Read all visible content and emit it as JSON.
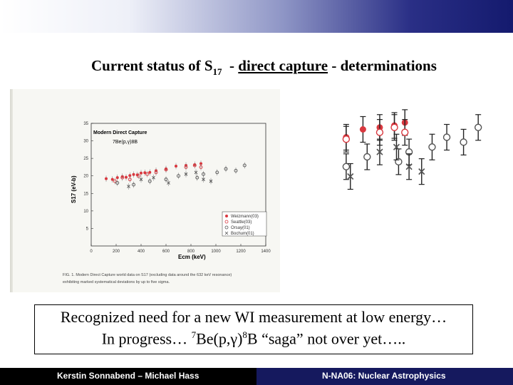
{
  "slide": {
    "title_part1": "Current status of S",
    "title_sub": "17",
    "title_part2": "  - ",
    "title_underlined": "direct capture",
    "title_part3": " - determinations"
  },
  "scanned_figure": {
    "header": "Modern Direct Capture",
    "reaction": "7Be(p,γ)8B",
    "caption_line1": "FIG. 1.  Modern Direct Capture world data on S17 (excluding data around the 632 keV resonance)",
    "caption_line2": "exhibiting marked systematical deviations by up to five sigma."
  },
  "chart_data": {
    "type": "scatter",
    "xlabel": "Ecm (keV)",
    "ylabel": "S17 (eV-b)",
    "xlim": [
      0,
      1400
    ],
    "ylim": [
      0,
      35
    ],
    "x_ticks": [
      "0",
      "200",
      "400",
      "600",
      "800",
      "1000",
      "1200",
      "1400"
    ],
    "y_ticks": [
      "5",
      "10",
      "15",
      "20",
      "25",
      "30",
      "35"
    ],
    "legend_position": "bottom-right",
    "series": [
      {
        "name": "Weizmann(03)",
        "marker": "filled-circle",
        "color": "#d9383f",
        "x": [
          120,
          170,
          210,
          250,
          280,
          310,
          340,
          370,
          400,
          430,
          470,
          520,
          600,
          680,
          760,
          830,
          880
        ],
        "y": [
          19.2,
          19.0,
          19.5,
          19.8,
          19.6,
          20.1,
          20.4,
          20.3,
          20.8,
          20.9,
          21.0,
          21.5,
          22.0,
          22.8,
          23.0,
          23.2,
          23.5
        ]
      },
      {
        "name": "Seattle(03)",
        "marker": "open-circle",
        "color": "#d9383f",
        "x": [
          190,
          250,
          310,
          380,
          450,
          520,
          600,
          760,
          830,
          880
        ],
        "y": [
          18.5,
          19.5,
          19.0,
          20.0,
          20.5,
          21.0,
          21.8,
          22.5,
          23.0,
          22.5
        ]
      },
      {
        "name": "Orsay(01)",
        "marker": "open-circle",
        "color": "#555555",
        "x": [
          210,
          340,
          470,
          600,
          700,
          850,
          900,
          1010,
          1080,
          1160,
          1230
        ],
        "y": [
          18.0,
          17.5,
          18.5,
          19.0,
          20.0,
          19.5,
          20.5,
          21.0,
          22.0,
          21.5,
          23.0
        ]
      },
      {
        "name": "Bochum(01)",
        "marker": "cross",
        "color": "#555555",
        "x": [
          300,
          400,
          500,
          620,
          760,
          840,
          900,
          960
        ],
        "y": [
          17.0,
          19.0,
          19.5,
          18.0,
          20.5,
          21.0,
          19.0,
          18.5
        ]
      }
    ]
  },
  "textbox": {
    "line1": "Recognized need for a new WI measurement at low energy…",
    "line2_part1": "In progress… ",
    "line2_sup1": "7",
    "line2_part2": "Be(p,γ)",
    "line2_sup2": "8",
    "line2_part3": "B “saga” not over yet….."
  },
  "footer": {
    "left": "Kerstin Sonnabend – Michael Hass",
    "right": "N-NA06: Nuclear Astrophysics"
  }
}
